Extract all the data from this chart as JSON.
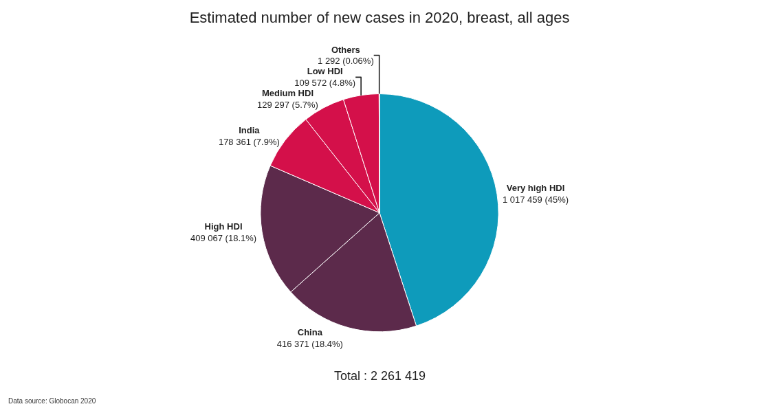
{
  "chart_data": {
    "type": "pie",
    "title": "Estimated number of new cases in 2020, breast, all ages",
    "categories": [
      "Very high HDI",
      "China",
      "High HDI",
      "India",
      "Medium HDI",
      "Low HDI",
      "Others"
    ],
    "values": [
      1017459,
      416371,
      409067,
      178361,
      129297,
      109572,
      1292
    ],
    "value_labels": [
      "1 017 459 (45%)",
      "416 371 (18.4%)",
      "409 067 (18.1%)",
      "178 361 (7.9%)",
      "129 297 (5.7%)",
      "109 572 (4.8%)",
      "1 292 (0.06%)"
    ],
    "colors": [
      "#0e9bbb",
      "#5c2a4b",
      "#5c2a4b",
      "#d4104a",
      "#d4104a",
      "#d4104a",
      "#f9d718"
    ],
    "annotations": [
      "Total : 2 261 419",
      "Data source: Globocan 2020"
    ],
    "legend": false
  }
}
